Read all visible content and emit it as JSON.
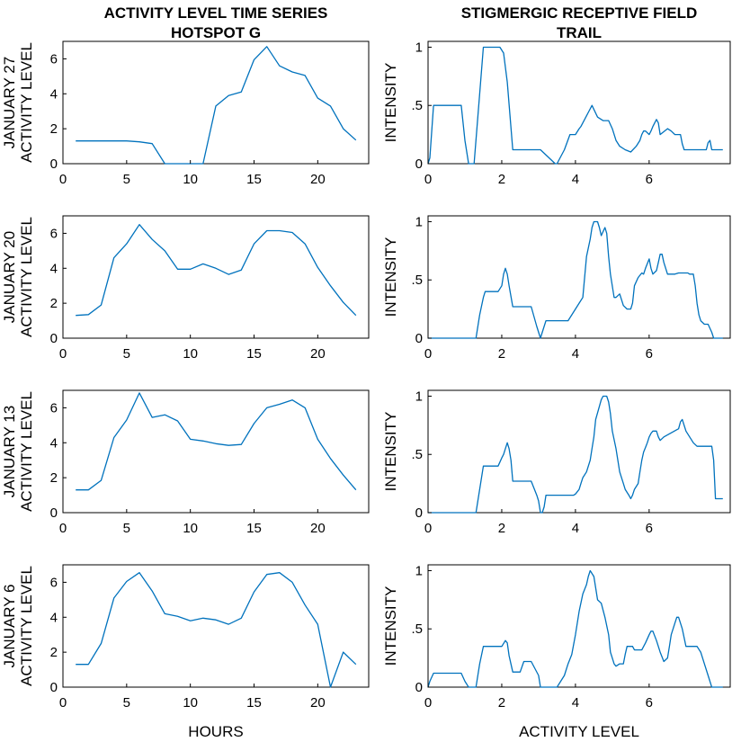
{
  "chart_data": [
    {
      "type": "line",
      "column": "left",
      "row": 0,
      "title": [
        "ACTIVITY LEVEL TIME SERIES",
        "HOTSPOT G"
      ],
      "ylabel": [
        "JANUARY 27",
        "ACTIVITY LEVEL"
      ],
      "xlabel": "",
      "xlim": [
        0,
        24
      ],
      "ylim": [
        0,
        7
      ],
      "xticks": [
        0,
        5,
        10,
        15,
        20
      ],
      "xtick_labels": [
        "0",
        "5",
        "10",
        "15",
        "20"
      ],
      "yticks": [
        0,
        2,
        4,
        6
      ],
      "ytick_labels": [
        "0",
        "2",
        "4",
        "6"
      ],
      "x": [
        1,
        2,
        3,
        4,
        5,
        6,
        7,
        8,
        9,
        10,
        11,
        12,
        13,
        14,
        15,
        16,
        17,
        18,
        19,
        20,
        21,
        22,
        23
      ],
      "y": [
        1.3,
        1.3,
        1.3,
        1.3,
        1.3,
        1.25,
        1.15,
        0,
        0,
        0,
        0,
        3.3,
        3.9,
        4.1,
        5.95,
        6.7,
        5.6,
        5.25,
        5.05,
        3.75,
        3.3,
        2.0,
        1.35
      ]
    },
    {
      "type": "line",
      "column": "left",
      "row": 1,
      "title": [],
      "ylabel": [
        "JANUARY 20",
        "ACTIVITY LEVEL"
      ],
      "xlabel": "",
      "xlim": [
        0,
        24
      ],
      "ylim": [
        0,
        7
      ],
      "xticks": [
        0,
        5,
        10,
        15,
        20
      ],
      "xtick_labels": [
        "0",
        "5",
        "10",
        "15",
        "20"
      ],
      "yticks": [
        0,
        2,
        4,
        6
      ],
      "ytick_labels": [
        "0",
        "2",
        "4",
        "6"
      ],
      "x": [
        1,
        2,
        3,
        4,
        5,
        6,
        7,
        8,
        9,
        10,
        11,
        12,
        13,
        14,
        15,
        16,
        17,
        18,
        19,
        20,
        21,
        22,
        23
      ],
      "y": [
        1.3,
        1.35,
        1.9,
        4.6,
        5.4,
        6.5,
        5.65,
        5.0,
        3.95,
        3.95,
        4.25,
        4.0,
        3.65,
        3.9,
        5.4,
        6.15,
        6.15,
        6.05,
        5.4,
        4.05,
        3.0,
        2.05,
        1.3
      ]
    },
    {
      "type": "line",
      "column": "left",
      "row": 2,
      "title": [],
      "ylabel": [
        "JANUARY 13",
        "ACTIVITY LEVEL"
      ],
      "xlabel": "",
      "xlim": [
        0,
        24
      ],
      "ylim": [
        0,
        7
      ],
      "xticks": [
        0,
        5,
        10,
        15,
        20
      ],
      "xtick_labels": [
        "0",
        "5",
        "10",
        "15",
        "20"
      ],
      "yticks": [
        0,
        2,
        4,
        6
      ],
      "ytick_labels": [
        "0",
        "2",
        "4",
        "6"
      ],
      "x": [
        1,
        2,
        3,
        4,
        5,
        6,
        7,
        8,
        9,
        10,
        11,
        12,
        13,
        14,
        15,
        16,
        17,
        18,
        19,
        20,
        21,
        22,
        23
      ],
      "y": [
        1.3,
        1.3,
        1.85,
        4.3,
        5.3,
        6.85,
        5.45,
        5.6,
        5.25,
        4.2,
        4.1,
        3.95,
        3.85,
        3.9,
        5.1,
        6.0,
        6.2,
        6.45,
        6.0,
        4.2,
        3.1,
        2.15,
        1.3
      ]
    },
    {
      "type": "line",
      "column": "left",
      "row": 3,
      "title": [],
      "ylabel": [
        "JANUARY 6",
        "ACTIVITY LEVEL"
      ],
      "xlabel": "HOURS",
      "xlim": [
        0,
        24
      ],
      "ylim": [
        0,
        7
      ],
      "xticks": [
        0,
        5,
        10,
        15,
        20
      ],
      "xtick_labels": [
        "0",
        "5",
        "10",
        "15",
        "20"
      ],
      "yticks": [
        0,
        2,
        4,
        6
      ],
      "ytick_labels": [
        "0",
        "2",
        "4",
        "6"
      ],
      "x": [
        1,
        2,
        3,
        4,
        5,
        6,
        7,
        8,
        9,
        10,
        11,
        12,
        13,
        14,
        15,
        16,
        17,
        18,
        19,
        20,
        21,
        22,
        23
      ],
      "y": [
        1.3,
        1.3,
        2.5,
        5.1,
        6.05,
        6.55,
        5.5,
        4.2,
        4.05,
        3.8,
        3.95,
        3.85,
        3.6,
        3.95,
        5.45,
        6.45,
        6.55,
        6.0,
        4.7,
        3.6,
        0,
        2.0,
        1.3
      ]
    },
    {
      "type": "line",
      "column": "right",
      "row": 0,
      "title": [
        "STIGMERGIC RECEPTIVE FIELD",
        "TRAIL"
      ],
      "ylabel": [
        "INTENSITY"
      ],
      "xlabel": "",
      "xlim": [
        0,
        8.2
      ],
      "ylim": [
        0,
        1.05
      ],
      "xticks": [
        0,
        2,
        4,
        6
      ],
      "xtick_labels": [
        "0",
        "2",
        "4",
        "6"
      ],
      "yticks": [
        0,
        0.5,
        1
      ],
      "ytick_labels": [
        "0",
        ".5",
        "1"
      ],
      "x": [
        0,
        0.05,
        0.15,
        0.2,
        0.9,
        1.0,
        1.1,
        1.25,
        1.4,
        1.5,
        1.95,
        2.05,
        2.15,
        2.3,
        2.95,
        3.05,
        3.45,
        3.5,
        3.7,
        3.85,
        4.0,
        4.1,
        4.15,
        4.25,
        4.35,
        4.45,
        4.6,
        4.75,
        4.9,
        5.0,
        5.1,
        5.2,
        5.35,
        5.5,
        5.65,
        5.75,
        5.8,
        5.85,
        5.9,
        6.0,
        6.05,
        6.1,
        6.2,
        6.25,
        6.3,
        6.5,
        6.6,
        6.7,
        6.8,
        6.85,
        6.9,
        6.95,
        7.0,
        7.5,
        7.55,
        7.6,
        7.65,
        7.7,
        8.0
      ],
      "y": [
        0,
        0.05,
        0.5,
        0.5,
        0.5,
        0.2,
        0,
        0,
        0.6,
        1.0,
        1.0,
        0.95,
        0.7,
        0.12,
        0.12,
        0.12,
        0,
        0,
        0.12,
        0.25,
        0.25,
        0.3,
        0.32,
        0.38,
        0.44,
        0.5,
        0.4,
        0.37,
        0.37,
        0.3,
        0.2,
        0.15,
        0.12,
        0.1,
        0.15,
        0.2,
        0.25,
        0.28,
        0.28,
        0.25,
        0.28,
        0.32,
        0.38,
        0.35,
        0.25,
        0.3,
        0.28,
        0.25,
        0.25,
        0.25,
        0.17,
        0.12,
        0.12,
        0.12,
        0.12,
        0.18,
        0.2,
        0.12,
        0.12
      ]
    },
    {
      "type": "line",
      "column": "right",
      "row": 1,
      "title": [],
      "ylabel": [
        "INTENSITY"
      ],
      "xlabel": "",
      "xlim": [
        0,
        8.2
      ],
      "ylim": [
        0,
        1.05
      ],
      "xticks": [
        0,
        2,
        4,
        6
      ],
      "xtick_labels": [
        "0",
        "2",
        "4",
        "6"
      ],
      "yticks": [
        0,
        0.5,
        1
      ],
      "ytick_labels": [
        "0",
        ".5",
        "1"
      ],
      "x": [
        0,
        1.3,
        1.4,
        1.5,
        1.55,
        1.65,
        1.9,
        2.0,
        2.05,
        2.1,
        2.15,
        2.2,
        2.3,
        2.55,
        2.8,
        2.95,
        3.05,
        3.1,
        3.2,
        3.5,
        3.8,
        3.9,
        4.0,
        4.1,
        4.2,
        4.3,
        4.4,
        4.45,
        4.5,
        4.6,
        4.65,
        4.7,
        4.8,
        4.85,
        4.9,
        4.95,
        5.05,
        5.1,
        5.2,
        5.3,
        5.4,
        5.5,
        5.55,
        5.6,
        5.7,
        5.8,
        5.85,
        5.9,
        6.0,
        6.05,
        6.1,
        6.2,
        6.25,
        6.3,
        6.35,
        6.4,
        6.5,
        6.6,
        6.7,
        6.8,
        6.9,
        7.0,
        7.05,
        7.1,
        7.2,
        7.25,
        7.3,
        7.35,
        7.4,
        7.5,
        7.6,
        7.7,
        7.75,
        7.8,
        8.0
      ],
      "y": [
        0,
        0,
        0.2,
        0.35,
        0.4,
        0.4,
        0.4,
        0.45,
        0.55,
        0.6,
        0.55,
        0.45,
        0.27,
        0.27,
        0.27,
        0.1,
        0,
        0.05,
        0.15,
        0.15,
        0.15,
        0.2,
        0.25,
        0.3,
        0.35,
        0.7,
        0.85,
        0.95,
        1.0,
        1.0,
        0.95,
        0.88,
        0.95,
        0.9,
        0.7,
        0.55,
        0.35,
        0.35,
        0.38,
        0.28,
        0.25,
        0.25,
        0.3,
        0.45,
        0.52,
        0.56,
        0.55,
        0.6,
        0.68,
        0.6,
        0.55,
        0.58,
        0.65,
        0.72,
        0.72,
        0.65,
        0.55,
        0.55,
        0.55,
        0.56,
        0.56,
        0.56,
        0.56,
        0.55,
        0.55,
        0.45,
        0.3,
        0.2,
        0.15,
        0.12,
        0.12,
        0.05,
        0,
        0,
        0
      ]
    },
    {
      "type": "line",
      "column": "right",
      "row": 2,
      "title": [],
      "ylabel": [
        "INTENSITY"
      ],
      "xlabel": "",
      "xlim": [
        0,
        8.2
      ],
      "ylim": [
        0,
        1.05
      ],
      "xticks": [
        0,
        2,
        4,
        6
      ],
      "xtick_labels": [
        "0",
        "2",
        "4",
        "6"
      ],
      "yticks": [
        0,
        0.5,
        1
      ],
      "ytick_labels": [
        "0",
        ".5",
        "1"
      ],
      "x": [
        0,
        1.3,
        1.4,
        1.5,
        1.9,
        2.0,
        2.05,
        2.1,
        2.15,
        2.2,
        2.25,
        2.3,
        2.8,
        2.95,
        3.0,
        3.05,
        3.1,
        3.15,
        3.2,
        3.95,
        4.0,
        4.05,
        4.1,
        4.15,
        4.2,
        4.3,
        4.4,
        4.45,
        4.5,
        4.55,
        4.7,
        4.75,
        4.8,
        4.85,
        4.9,
        4.95,
        5.0,
        5.1,
        5.2,
        5.3,
        5.35,
        5.45,
        5.5,
        5.55,
        5.6,
        5.7,
        5.75,
        5.8,
        5.85,
        5.9,
        5.95,
        6.0,
        6.05,
        6.1,
        6.2,
        6.25,
        6.3,
        6.4,
        6.8,
        6.85,
        6.9,
        7.0,
        7.1,
        7.2,
        7.3,
        7.4,
        7.6,
        7.7,
        7.75,
        7.8,
        8.0
      ],
      "y": [
        0,
        0,
        0.2,
        0.4,
        0.4,
        0.47,
        0.5,
        0.55,
        0.6,
        0.55,
        0.45,
        0.27,
        0.27,
        0.15,
        0.1,
        0,
        0,
        0.05,
        0.15,
        0.15,
        0.16,
        0.18,
        0.2,
        0.25,
        0.3,
        0.35,
        0.45,
        0.55,
        0.65,
        0.8,
        0.97,
        1.0,
        1.0,
        1.0,
        0.95,
        0.85,
        0.7,
        0.55,
        0.35,
        0.25,
        0.2,
        0.15,
        0.12,
        0.15,
        0.2,
        0.25,
        0.35,
        0.45,
        0.52,
        0.56,
        0.6,
        0.65,
        0.68,
        0.7,
        0.7,
        0.65,
        0.62,
        0.65,
        0.72,
        0.78,
        0.8,
        0.7,
        0.65,
        0.6,
        0.57,
        0.57,
        0.57,
        0.57,
        0.45,
        0.12,
        0.12
      ]
    },
    {
      "type": "line",
      "column": "right",
      "row": 3,
      "title": [],
      "ylabel": [
        "INTENSITY"
      ],
      "xlabel": "ACTIVITY LEVEL",
      "xlim": [
        0,
        8.2
      ],
      "ylim": [
        0,
        1.05
      ],
      "xticks": [
        0,
        2,
        4,
        6
      ],
      "xtick_labels": [
        "0",
        "2",
        "4",
        "6"
      ],
      "yticks": [
        0,
        0.5,
        1
      ],
      "ytick_labels": [
        "0",
        ".5",
        "1"
      ],
      "x": [
        0,
        0.05,
        0.15,
        0.2,
        0.9,
        1.0,
        1.1,
        1.3,
        1.4,
        1.5,
        2.0,
        2.1,
        2.15,
        2.2,
        2.3,
        2.5,
        2.6,
        2.8,
        3.0,
        3.05,
        3.5,
        3.6,
        3.7,
        3.8,
        3.9,
        4.0,
        4.1,
        4.2,
        4.3,
        4.35,
        4.4,
        4.5,
        4.6,
        4.7,
        4.8,
        4.9,
        4.95,
        5.05,
        5.1,
        5.2,
        5.3,
        5.35,
        5.4,
        5.55,
        5.6,
        5.8,
        5.9,
        6.0,
        6.05,
        6.1,
        6.2,
        6.3,
        6.4,
        6.5,
        6.55,
        6.6,
        6.7,
        6.75,
        6.8,
        6.9,
        7.0,
        7.3,
        7.4,
        7.5,
        7.6,
        7.7,
        7.8,
        8.0
      ],
      "y": [
        0,
        0.05,
        0.12,
        0.12,
        0.12,
        0.05,
        0,
        0,
        0.2,
        0.35,
        0.35,
        0.4,
        0.38,
        0.27,
        0.13,
        0.13,
        0.22,
        0.22,
        0.1,
        0,
        0,
        0.05,
        0.1,
        0.2,
        0.28,
        0.45,
        0.65,
        0.8,
        0.88,
        0.95,
        1.0,
        0.95,
        0.75,
        0.72,
        0.6,
        0.45,
        0.3,
        0.2,
        0.18,
        0.2,
        0.2,
        0.28,
        0.35,
        0.35,
        0.32,
        0.32,
        0.38,
        0.45,
        0.48,
        0.48,
        0.4,
        0.3,
        0.22,
        0.25,
        0.35,
        0.45,
        0.55,
        0.6,
        0.6,
        0.5,
        0.35,
        0.35,
        0.3,
        0.2,
        0.1,
        0,
        0,
        0
      ]
    }
  ]
}
